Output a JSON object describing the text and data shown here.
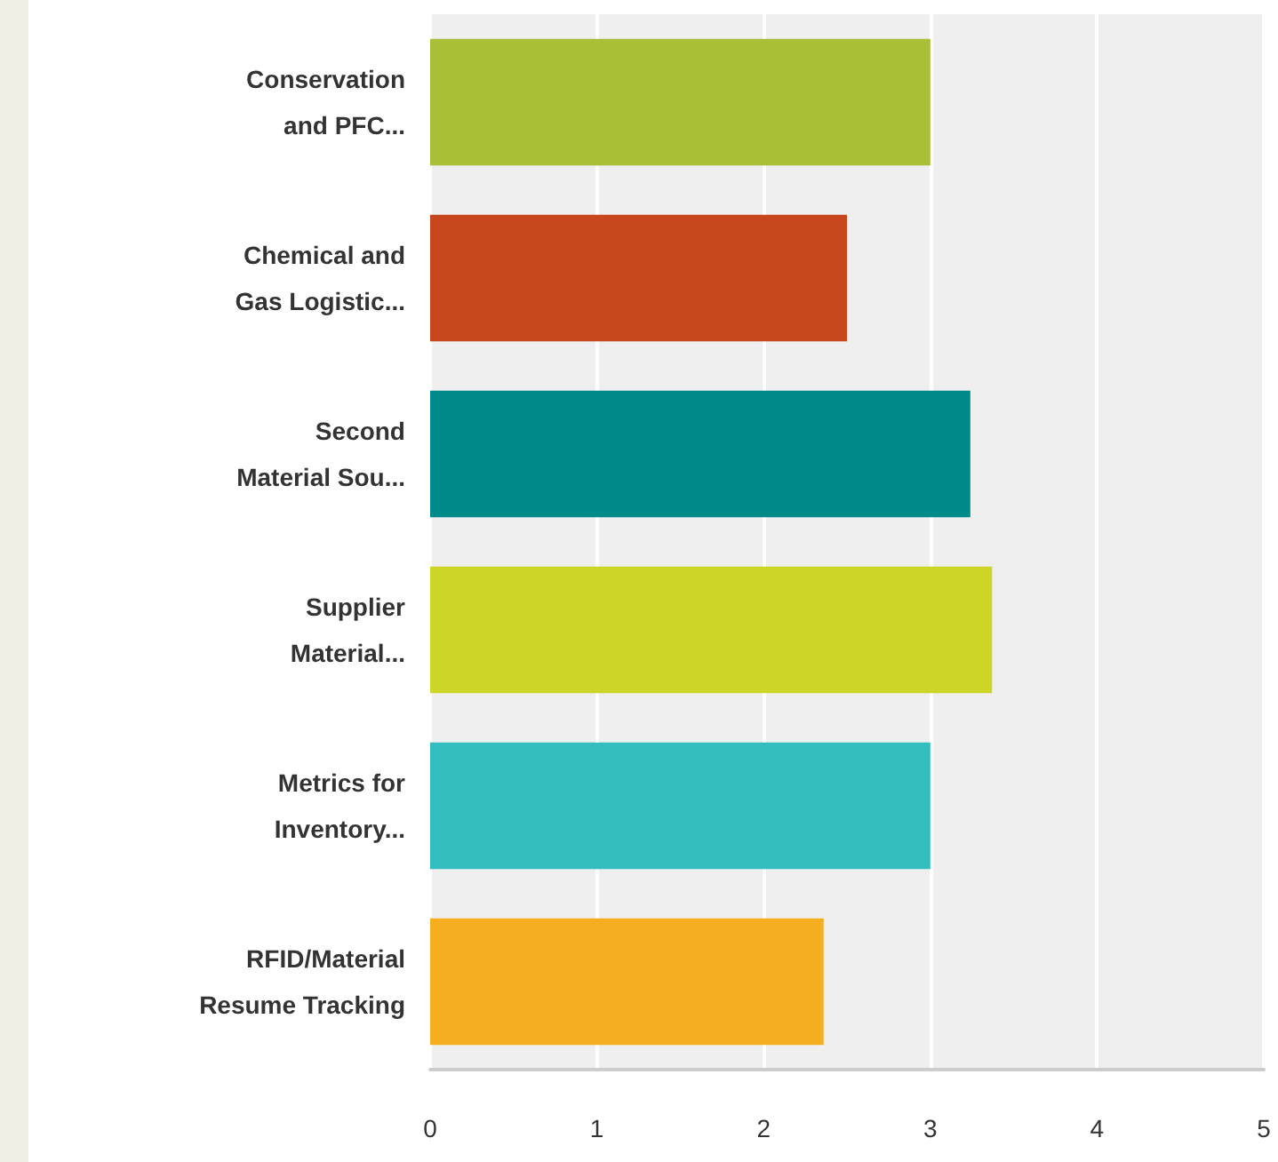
{
  "chart_data": {
    "type": "bar",
    "orientation": "horizontal",
    "categories": [
      "Conservation\nand PFC...",
      "Chemical and\nGas Logistic...",
      "Second\nMaterial Sou...",
      "Supplier\nMaterial...",
      "Metrics for\nInventory...",
      "RFID/Material\nResume Tracking"
    ],
    "values": [
      3.0,
      2.5,
      3.24,
      3.37,
      3.0,
      2.36
    ],
    "colors": [
      "#a9bf38",
      "#c8461b",
      "#008b8a",
      "#cdd627",
      "#33bdbf",
      "#f5ae1f"
    ],
    "xlim": [
      0,
      5
    ],
    "xticks": [
      0,
      1,
      2,
      3,
      4,
      5
    ],
    "grid": "x"
  }
}
